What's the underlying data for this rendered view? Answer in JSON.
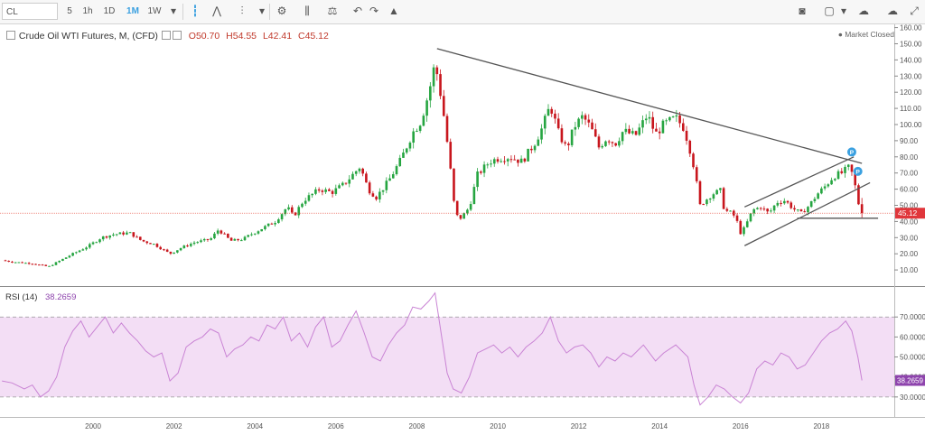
{
  "toolbar": {
    "symbol": "CL",
    "intervals": [
      "5",
      "1h",
      "1D",
      "1M",
      "1W"
    ],
    "active_interval": "1M",
    "icons": [
      "dropdown-icon",
      "candles-icon",
      "area-icon",
      "bars-compare-icon",
      "dropdown-icon",
      "gear-icon",
      "indicators-icon",
      "scale-icon",
      "undo-icon",
      "redo-icon",
      "tree-icon"
    ],
    "right_icons": [
      "camera-icon",
      "square-icon",
      "dropdown-icon",
      "cloud-down-icon",
      "cloud-up-icon",
      "fullscreen-icon"
    ]
  },
  "legend": {
    "name": "Crude Oil WTI Futures, M, (CFD)",
    "open": "O50.70",
    "high": "H54.55",
    "low": "L42.41",
    "close": "C45.12"
  },
  "market_status": "● Market Closed",
  "last_price_label": "45.12",
  "rsi_legend": {
    "name": "RSI (14)",
    "value": "38.2659"
  },
  "rsi_last_label": "38.2659",
  "colors": {
    "up": "#26a541",
    "down": "#c8161d",
    "rsi": "#c983d4",
    "rsi_band": "#f3def5",
    "trend": "#555555",
    "price_line": "#e74c3c",
    "marker": "#3aa0e0"
  },
  "chart_data": [
    {
      "type": "candlestick",
      "title": "Crude Oil WTI Futures, M, (CFD)",
      "interval": "monthly",
      "x_ticks": [
        "2000",
        "2002",
        "2004",
        "2006",
        "2008",
        "2010",
        "2012",
        "2014",
        "2016",
        "2018"
      ],
      "x_range": [
        1997.7,
        2019.8
      ],
      "y_ticks": [
        "10.00",
        "20.00",
        "30.00",
        "40.00",
        "50.00",
        "60.00",
        "70.00",
        "80.00",
        "90.00",
        "100.00",
        "110.00",
        "120.00",
        "130.00",
        "140.00",
        "150.00",
        "160.00"
      ],
      "ylim": [
        0,
        162
      ],
      "close_path": [
        [
          1997.75,
          16
        ],
        [
          1998.0,
          15
        ],
        [
          1998.5,
          14
        ],
        [
          1998.9,
          12
        ],
        [
          1999.2,
          16
        ],
        [
          1999.5,
          20
        ],
        [
          1999.9,
          25
        ],
        [
          2000.2,
          30
        ],
        [
          2000.5,
          32
        ],
        [
          2000.9,
          33
        ],
        [
          2001.2,
          28
        ],
        [
          2001.5,
          26
        ],
        [
          2001.9,
          20
        ],
        [
          2002.2,
          24
        ],
        [
          2002.5,
          27
        ],
        [
          2002.9,
          29
        ],
        [
          2003.1,
          35
        ],
        [
          2003.4,
          28
        ],
        [
          2003.7,
          29
        ],
        [
          2003.9,
          32
        ],
        [
          2004.2,
          36
        ],
        [
          2004.5,
          40
        ],
        [
          2004.8,
          49
        ],
        [
          2004.95,
          43
        ],
        [
          2005.2,
          53
        ],
        [
          2005.6,
          60
        ],
        [
          2005.9,
          58
        ],
        [
          2006.2,
          63
        ],
        [
          2006.6,
          74
        ],
        [
          2006.8,
          60
        ],
        [
          2007.0,
          55
        ],
        [
          2007.3,
          65
        ],
        [
          2007.6,
          78
        ],
        [
          2007.9,
          95
        ],
        [
          2008.1,
          102
        ],
        [
          2008.3,
          120
        ],
        [
          2008.45,
          138
        ],
        [
          2008.55,
          125
        ],
        [
          2008.7,
          100
        ],
        [
          2008.85,
          68
        ],
        [
          2008.95,
          44
        ],
        [
          2009.1,
          42
        ],
        [
          2009.3,
          49
        ],
        [
          2009.5,
          69
        ],
        [
          2009.8,
          77
        ],
        [
          2010.0,
          79
        ],
        [
          2010.3,
          80
        ],
        [
          2010.6,
          77
        ],
        [
          2010.9,
          88
        ],
        [
          2011.1,
          98
        ],
        [
          2011.3,
          112
        ],
        [
          2011.5,
          95
        ],
        [
          2011.7,
          85
        ],
        [
          2011.9,
          99
        ],
        [
          2012.1,
          105
        ],
        [
          2012.3,
          98
        ],
        [
          2012.5,
          86
        ],
        [
          2012.7,
          92
        ],
        [
          2012.9,
          88
        ],
        [
          2013.1,
          96
        ],
        [
          2013.4,
          93
        ],
        [
          2013.7,
          106
        ],
        [
          2013.9,
          94
        ],
        [
          2014.1,
          100
        ],
        [
          2014.4,
          104
        ],
        [
          2014.6,
          98
        ],
        [
          2014.8,
          80
        ],
        [
          2014.9,
          66
        ],
        [
          2015.0,
          50
        ],
        [
          2015.3,
          57
        ],
        [
          2015.5,
          59
        ],
        [
          2015.6,
          47
        ],
        [
          2015.8,
          45
        ],
        [
          2015.9,
          41
        ],
        [
          2016.0,
          33
        ],
        [
          2016.1,
          36
        ],
        [
          2016.3,
          47
        ],
        [
          2016.5,
          49
        ],
        [
          2016.7,
          45
        ],
        [
          2016.9,
          52
        ],
        [
          2017.1,
          53
        ],
        [
          2017.3,
          48
        ],
        [
          2017.5,
          45
        ],
        [
          2017.7,
          50
        ],
        [
          2017.9,
          57
        ],
        [
          2018.1,
          62
        ],
        [
          2018.3,
          68
        ],
        [
          2018.5,
          70
        ],
        [
          2018.7,
          74
        ],
        [
          2018.8,
          66
        ],
        [
          2018.92,
          50.7
        ],
        [
          2019.0,
          45.12
        ]
      ],
      "last_bar": {
        "open": 50.7,
        "high": 54.55,
        "low": 42.41,
        "close": 45.12
      },
      "trendlines": [
        {
          "from": [
            2008.5,
            147
          ],
          "to": [
            2019.0,
            76
          ]
        },
        {
          "from": [
            2016.1,
            49
          ],
          "to": [
            2018.8,
            80
          ]
        },
        {
          "from": [
            2016.1,
            25
          ],
          "to": [
            2019.2,
            64
          ]
        },
        {
          "from": [
            2017.4,
            42
          ],
          "to": [
            2019.4,
            42
          ]
        }
      ],
      "markers": [
        {
          "x": 2018.75,
          "y": 83,
          "label": "P"
        },
        {
          "x": 2018.9,
          "y": 71,
          "label": "P"
        }
      ],
      "horizontal_line": 45.12
    },
    {
      "type": "line",
      "title": "RSI (14)",
      "ylim": [
        20,
        85
      ],
      "y_ticks": [
        "30.0000",
        "40.0000",
        "50.0000",
        "60.0000",
        "70.0000"
      ],
      "bands": [
        30,
        70
      ],
      "series": [
        {
          "values": [
            [
              1997.75,
              38
            ],
            [
              1998.0,
              37
            ],
            [
              1998.3,
              34
            ],
            [
              1998.5,
              36
            ],
            [
              1998.7,
              30
            ],
            [
              1998.9,
              33
            ],
            [
              1999.1,
              40
            ],
            [
              1999.3,
              55
            ],
            [
              1999.5,
              63
            ],
            [
              1999.7,
              68
            ],
            [
              1999.9,
              60
            ],
            [
              2000.1,
              65
            ],
            [
              2000.3,
              70
            ],
            [
              2000.5,
              62
            ],
            [
              2000.7,
              67
            ],
            [
              2000.9,
              62
            ],
            [
              2001.1,
              58
            ],
            [
              2001.3,
              53
            ],
            [
              2001.5,
              50
            ],
            [
              2001.7,
              52
            ],
            [
              2001.9,
              38
            ],
            [
              2002.1,
              42
            ],
            [
              2002.3,
              55
            ],
            [
              2002.5,
              58
            ],
            [
              2002.7,
              60
            ],
            [
              2002.9,
              64
            ],
            [
              2003.1,
              62
            ],
            [
              2003.3,
              50
            ],
            [
              2003.5,
              54
            ],
            [
              2003.7,
              56
            ],
            [
              2003.9,
              60
            ],
            [
              2004.1,
              58
            ],
            [
              2004.3,
              66
            ],
            [
              2004.5,
              64
            ],
            [
              2004.7,
              70
            ],
            [
              2004.9,
              58
            ],
            [
              2005.1,
              62
            ],
            [
              2005.3,
              55
            ],
            [
              2005.5,
              65
            ],
            [
              2005.7,
              70
            ],
            [
              2005.9,
              55
            ],
            [
              2006.1,
              58
            ],
            [
              2006.3,
              66
            ],
            [
              2006.5,
              73
            ],
            [
              2006.7,
              62
            ],
            [
              2006.9,
              50
            ],
            [
              2007.1,
              48
            ],
            [
              2007.3,
              56
            ],
            [
              2007.5,
              62
            ],
            [
              2007.7,
              66
            ],
            [
              2007.9,
              75
            ],
            [
              2008.1,
              74
            ],
            [
              2008.3,
              78
            ],
            [
              2008.45,
              82
            ],
            [
              2008.6,
              62
            ],
            [
              2008.75,
              42
            ],
            [
              2008.9,
              34
            ],
            [
              2009.1,
              32
            ],
            [
              2009.3,
              40
            ],
            [
              2009.5,
              52
            ],
            [
              2009.7,
              54
            ],
            [
              2009.9,
              56
            ],
            [
              2010.1,
              52
            ],
            [
              2010.3,
              55
            ],
            [
              2010.5,
              50
            ],
            [
              2010.7,
              55
            ],
            [
              2010.9,
              58
            ],
            [
              2011.1,
              62
            ],
            [
              2011.3,
              70
            ],
            [
              2011.5,
              58
            ],
            [
              2011.7,
              52
            ],
            [
              2011.9,
              55
            ],
            [
              2012.1,
              56
            ],
            [
              2012.3,
              52
            ],
            [
              2012.5,
              45
            ],
            [
              2012.7,
              50
            ],
            [
              2012.9,
              48
            ],
            [
              2013.1,
              52
            ],
            [
              2013.3,
              50
            ],
            [
              2013.6,
              56
            ],
            [
              2013.9,
              48
            ],
            [
              2014.1,
              52
            ],
            [
              2014.4,
              56
            ],
            [
              2014.7,
              50
            ],
            [
              2014.85,
              36
            ],
            [
              2015.0,
              26
            ],
            [
              2015.2,
              30
            ],
            [
              2015.4,
              36
            ],
            [
              2015.6,
              34
            ],
            [
              2015.8,
              30
            ],
            [
              2016.0,
              27
            ],
            [
              2016.2,
              32
            ],
            [
              2016.4,
              44
            ],
            [
              2016.6,
              48
            ],
            [
              2016.8,
              46
            ],
            [
              2017.0,
              52
            ],
            [
              2017.2,
              50
            ],
            [
              2017.4,
              44
            ],
            [
              2017.6,
              46
            ],
            [
              2017.8,
              52
            ],
            [
              2018.0,
              58
            ],
            [
              2018.2,
              62
            ],
            [
              2018.4,
              64
            ],
            [
              2018.6,
              68
            ],
            [
              2018.75,
              63
            ],
            [
              2018.9,
              50
            ],
            [
              2019.0,
              38.27
            ]
          ]
        }
      ]
    }
  ]
}
